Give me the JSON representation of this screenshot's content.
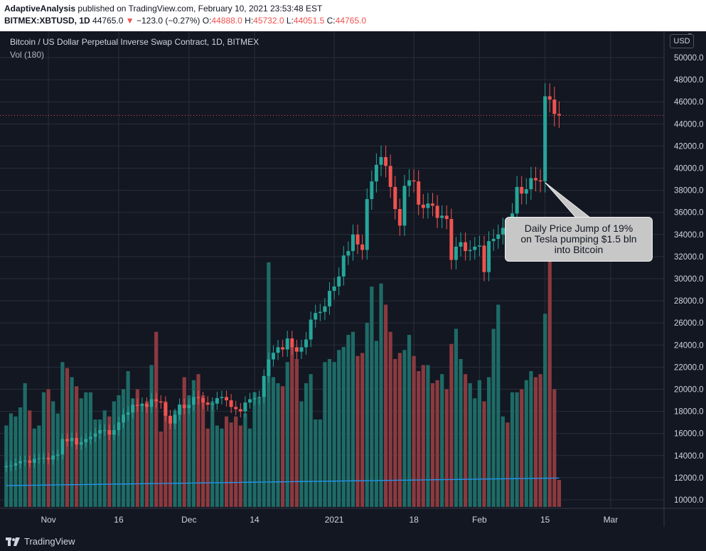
{
  "header": {
    "publisher": "AdaptiveAnalysis",
    "published_text": "published on TradingView.com, February 10, 2021 23:53:48 EST",
    "symbol": "BITMEX:XBTUSD, 1D",
    "last": "44765.0",
    "change": "−123.0 (−0.27%)",
    "o_label": "O:",
    "o_val": "44888.0",
    "h_label": "H:",
    "h_val": "45732.0",
    "l_label": "L:",
    "l_val": "44051.5",
    "c_label": "C:",
    "c_val": "44765.0"
  },
  "chart_title": "Bitcoin / US Dollar Perpetual Inverse Swap Contract, 1D, BITMEX",
  "volume_label": "Vol (180)",
  "currency_button": "USD",
  "annotation": {
    "line1": "Daily Price Jump of 19%",
    "line2": "on Tesla pumping $1.5 bln",
    "line3": "into Bitcoin"
  },
  "footer": {
    "brand": "TradingView"
  },
  "colors": {
    "up": "#26a69a",
    "down": "#ef5350",
    "vol_up": "#1e6b66",
    "vol_down": "#8b3a3f",
    "ma": "#2196f3",
    "grid": "#2a2e39",
    "bg": "#131722"
  },
  "chart_data": {
    "type": "candlestick",
    "title": "Bitcoin / US Dollar Perpetual Inverse Swap Contract, 1D, BITMEX",
    "yaxis_ticks": [
      10000,
      12000,
      14000,
      16000,
      18000,
      20000,
      22000,
      24000,
      26000,
      28000,
      30000,
      32000,
      34000,
      36000,
      38000,
      40000,
      42000,
      44000,
      46000,
      48000,
      50000
    ],
    "yaxis_top_partial": "5",
    "xaxis_ticks": [
      {
        "label": "Nov",
        "index": 9
      },
      {
        "label": "16",
        "index": 24
      },
      {
        "label": "Dec",
        "index": 39
      },
      {
        "label": "14",
        "index": 53
      },
      {
        "label": "2021",
        "index": 70
      },
      {
        "label": "18",
        "index": 87
      },
      {
        "label": "Feb",
        "index": 101
      },
      {
        "label": "15",
        "index": 115
      },
      {
        "label": "Mar",
        "index": 129
      }
    ],
    "current_price": 44765,
    "close": [
      13050,
      13100,
      13300,
      13500,
      13550,
      13350,
      13700,
      13750,
      13800,
      13650,
      14000,
      14100,
      15500,
      15300,
      15600,
      15000,
      15200,
      15500,
      15700,
      16000,
      16300,
      16300,
      15900,
      16300,
      17000,
      17700,
      17900,
      18600,
      18500,
      18700,
      18400,
      19100,
      18900,
      18800,
      17600,
      16900,
      17700,
      18600,
      18300,
      18600,
      19300,
      19200,
      18800,
      18600,
      18700,
      19200,
      19300,
      19000,
      18400,
      18200,
      18000,
      18800,
      19100,
      19200,
      19300,
      21200,
      22700,
      23300,
      23800,
      23600,
      24600,
      23800,
      23400,
      23800,
      24500,
      26300,
      26900,
      27000,
      27500,
      28900,
      29300,
      30200,
      32100,
      32500,
      34000,
      33100,
      32600,
      37200,
      38800,
      40300,
      41000,
      40200,
      38300,
      36300,
      34800,
      38400,
      38900,
      38800,
      36700,
      36400,
      36800,
      36600,
      35500,
      35700,
      35400,
      31700,
      32900,
      33300,
      32500,
      32600,
      32900,
      33000,
      30600,
      33400,
      33600,
      34000,
      34600,
      33200,
      35900,
      38300,
      37700,
      38100,
      39100,
      38900,
      38800,
      46500,
      46200,
      44900,
      44765
    ],
    "volume": [
      12600,
      13000,
      12900,
      13200,
      14000,
      13100,
      12500,
      12600,
      13700,
      13800,
      13400,
      13000,
      14700,
      14500,
      14200,
      13900,
      13500,
      13700,
      13700,
      12800,
      12800,
      13100,
      12900,
      13400,
      13600,
      13800,
      14400,
      13500,
      13800,
      13300,
      13400,
      14600,
      15700,
      12400,
      13400,
      12800,
      13100,
      13300,
      14200,
      13600,
      14100,
      14300,
      13600,
      12500,
      13400,
      12600,
      12500,
      12900,
      12700,
      12900,
      12600,
      13000,
      12500,
      13700,
      13500,
      13800,
      18000,
      14200,
      14000,
      13900,
      14700,
      15200,
      14800,
      13400,
      14000,
      14300,
      12800,
      12800,
      14700,
      14800,
      14700,
      15100,
      15200,
      15600,
      15700,
      14900,
      15000,
      16000,
      17200,
      15400,
      17300,
      16600,
      15700,
      14800,
      15000,
      15100,
      15600,
      14900,
      14400,
      14600,
      14600,
      14000,
      14100,
      14300,
      13800,
      15300,
      15800,
      14800,
      14300,
      14000,
      13500,
      14100,
      13400,
      14200,
      15800,
      16600,
      12900,
      12700,
      13700,
      13700,
      13800,
      14100,
      14400,
      14200,
      14300,
      16300,
      18300,
      13800,
      10800
    ]
  }
}
